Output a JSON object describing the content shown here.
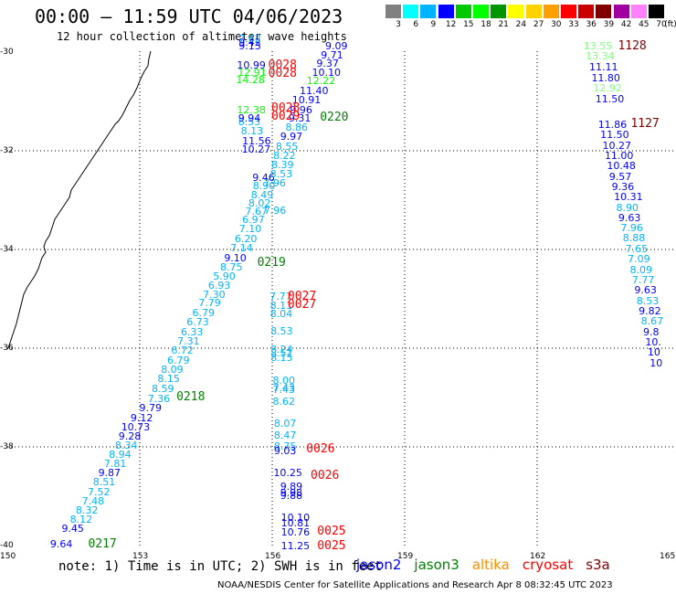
{
  "title": "00:00 – 11:59 UTC 04/06/2023",
  "subtitle": "12 hour collection of altimeter wave heights",
  "color_scale": {
    "labels": [
      "3",
      "6",
      "9",
      "12",
      "15",
      "18",
      "21",
      "24",
      "27",
      "30",
      "33",
      "36",
      "39",
      "42",
      "45",
      "70"
    ],
    "unit": "(ft)",
    "colors": [
      "#808080",
      "#00ffff",
      "#00b4ff",
      "#0000ff",
      "#00c800",
      "#00ff00",
      "#009600",
      "#ffff00",
      "#ffd200",
      "#ffa000",
      "#ff0000",
      "#c80000",
      "#800000",
      "#a000a0",
      "#ff80ff",
      "#000000"
    ]
  },
  "map": {
    "lon_labels": [
      "150",
      "153",
      "156",
      "159",
      "162",
      "165"
    ],
    "lat_labels": [
      "-30",
      "-32",
      "-34",
      "-36",
      "-38",
      "-40"
    ],
    "grid": true,
    "tracks": [
      {
        "mission": "jason3",
        "time": "0217",
        "color": "#007f00"
      },
      {
        "mission": "jason3",
        "time": "0218",
        "color": "#007f00"
      },
      {
        "mission": "jason3",
        "time": "0219",
        "color": "#007f00"
      },
      {
        "mission": "jason3",
        "time": "0220",
        "color": "#007f00"
      },
      {
        "mission": "cryosat",
        "time": "0025",
        "color": "#ff0000"
      },
      {
        "mission": "cryosat",
        "time": "0026",
        "color": "#ff0000"
      },
      {
        "mission": "cryosat",
        "time": "0027",
        "color": "#ff0000"
      },
      {
        "mission": "cryosat",
        "time": "0028",
        "color": "#ff0000"
      },
      {
        "mission": "s3a",
        "time": "1127",
        "color": "#800000"
      },
      {
        "mission": "s3a",
        "time": "1128",
        "color": "#800000"
      }
    ],
    "observations": [
      {
        "v": "9.64",
        "lon": 150.97,
        "lat": -39.97,
        "c": "#0000ff"
      },
      {
        "v": "9.45",
        "lon": 151.23,
        "lat": -39.65,
        "c": "#0000ff"
      },
      {
        "v": "8.12",
        "lon": 151.42,
        "lat": -39.47,
        "c": "#00b4ff"
      },
      {
        "v": "8.32",
        "lon": 151.55,
        "lat": -39.28,
        "c": "#00b4ff"
      },
      {
        "v": "7.48",
        "lon": 151.69,
        "lat": -39.09,
        "c": "#00b4ff"
      },
      {
        "v": "7.52",
        "lon": 151.82,
        "lat": -38.9,
        "c": "#00b4ff"
      },
      {
        "v": "8.51",
        "lon": 151.94,
        "lat": -38.71,
        "c": "#00b4ff"
      },
      {
        "v": "9.87",
        "lon": 152.06,
        "lat": -38.51,
        "c": "#0000ff"
      },
      {
        "v": "7.81",
        "lon": 152.19,
        "lat": -38.33,
        "c": "#00b4ff"
      },
      {
        "v": "8.94",
        "lon": 152.3,
        "lat": -38.15,
        "c": "#00b4ff"
      },
      {
        "v": "8.34",
        "lon": 152.44,
        "lat": -37.97,
        "c": "#00b4ff"
      },
      {
        "v": "9.28",
        "lon": 152.52,
        "lat": -37.78,
        "c": "#0000ff"
      },
      {
        "v": "10.73",
        "lon": 152.58,
        "lat": -37.59,
        "c": "#0000ff"
      },
      {
        "v": "9.12",
        "lon": 152.79,
        "lat": -37.4,
        "c": "#0000ff"
      },
      {
        "v": "9.79",
        "lon": 152.99,
        "lat": -37.21,
        "c": "#0000ff"
      },
      {
        "v": "7.36",
        "lon": 153.18,
        "lat": -37.02,
        "c": "#00b4ff"
      },
      {
        "v": "8.59",
        "lon": 153.27,
        "lat": -36.82,
        "c": "#00b4ff"
      },
      {
        "v": "8.15",
        "lon": 153.4,
        "lat": -36.62,
        "c": "#00b4ff"
      },
      {
        "v": "8.09",
        "lon": 153.48,
        "lat": -36.43,
        "c": "#00b4ff"
      },
      {
        "v": "6.79",
        "lon": 153.62,
        "lat": -36.24,
        "c": "#00b4ff"
      },
      {
        "v": "6.72",
        "lon": 153.71,
        "lat": -36.04,
        "c": "#00b4ff"
      },
      {
        "v": "7.31",
        "lon": 153.85,
        "lat": -35.85,
        "c": "#00b4ff"
      },
      {
        "v": "6.33",
        "lon": 153.93,
        "lat": -35.66,
        "c": "#00b4ff"
      },
      {
        "v": "6.73",
        "lon": 154.06,
        "lat": -35.46,
        "c": "#00b4ff"
      },
      {
        "v": "6.79",
        "lon": 154.19,
        "lat": -35.27,
        "c": "#00b4ff"
      },
      {
        "v": "7.79",
        "lon": 154.33,
        "lat": -35.08,
        "c": "#00b4ff"
      },
      {
        "v": "7.30",
        "lon": 154.43,
        "lat": -34.91,
        "c": "#00b4ff"
      },
      {
        "v": "6.93",
        "lon": 154.55,
        "lat": -34.72,
        "c": "#00b4ff"
      },
      {
        "v": "5.90",
        "lon": 154.66,
        "lat": -34.53,
        "c": "#00b4ff"
      },
      {
        "v": "8.75",
        "lon": 154.82,
        "lat": -34.35,
        "c": "#00b4ff"
      },
      {
        "v": "9.10",
        "lon": 154.91,
        "lat": -34.16,
        "c": "#0000ff"
      },
      {
        "v": "7.14",
        "lon": 155.05,
        "lat": -33.96,
        "c": "#00b4ff"
      },
      {
        "v": "6.20",
        "lon": 155.15,
        "lat": -33.77,
        "c": "#00b4ff"
      },
      {
        "v": "7.10",
        "lon": 155.25,
        "lat": -33.57,
        "c": "#00b4ff"
      },
      {
        "v": "6.97",
        "lon": 155.32,
        "lat": -33.39,
        "c": "#00b4ff"
      },
      {
        "v": "7.67",
        "lon": 155.39,
        "lat": -33.22,
        "c": "#00b4ff"
      },
      {
        "v": "8.02",
        "lon": 155.46,
        "lat": -33.05,
        "c": "#00b4ff"
      },
      {
        "v": "8.49",
        "lon": 155.52,
        "lat": -32.88,
        "c": "#00b4ff"
      },
      {
        "v": "8.90",
        "lon": 155.56,
        "lat": -32.71,
        "c": "#00b4ff"
      },
      {
        "v": "9.46",
        "lon": 155.55,
        "lat": -32.53,
        "c": "#0000ff"
      },
      {
        "v": "10.27",
        "lon": 155.31,
        "lat": -31.97,
        "c": "#0000ff"
      },
      {
        "v": "11.56",
        "lon": 155.32,
        "lat": -31.79,
        "c": "#0000ff"
      },
      {
        "v": "8.13",
        "lon": 155.29,
        "lat": -31.6,
        "c": "#00b4ff"
      },
      {
        "v": "8.53",
        "lon": 155.23,
        "lat": -31.4,
        "c": "#00b4ff"
      },
      {
        "v": "9.94",
        "lon": 155.23,
        "lat": -31.33,
        "c": "#0000ff"
      },
      {
        "v": "12.38",
        "lon": 155.2,
        "lat": -31.16,
        "c": "#00ff00"
      },
      {
        "v": "14.28",
        "lon": 155.18,
        "lat": -30.56,
        "c": "#00ff00"
      },
      {
        "v": "12.91",
        "lon": 155.22,
        "lat": -30.41,
        "c": "#00ff00"
      },
      {
        "v": "10.99",
        "lon": 155.2,
        "lat": -30.25,
        "c": "#0000ff"
      },
      {
        "v": "9.13",
        "lon": 155.24,
        "lat": -29.87,
        "c": "#0000ff"
      },
      {
        "v": "9.42",
        "lon": 155.24,
        "lat": -29.8,
        "c": "#0000ff"
      },
      {
        "v": "7.62",
        "lon": 155.24,
        "lat": -29.72,
        "c": "#00b4ff"
      },
      {
        "v": "9.09",
        "lon": 157.2,
        "lat": -29.87,
        "c": "#0000ff"
      },
      {
        "v": "9.71",
        "lon": 157.1,
        "lat": -30.05,
        "c": "#0000ff"
      },
      {
        "v": "9.37",
        "lon": 157.0,
        "lat": -30.22,
        "c": "#0000ff"
      },
      {
        "v": "10.10",
        "lon": 156.9,
        "lat": -30.4,
        "c": "#0000ff"
      },
      {
        "v": "12.22",
        "lon": 156.78,
        "lat": -30.57,
        "c": "#00ff00"
      },
      {
        "v": "11.40",
        "lon": 156.62,
        "lat": -30.78,
        "c": "#0000ff"
      },
      {
        "v": "10.91",
        "lon": 156.45,
        "lat": -30.96,
        "c": "#0000ff"
      },
      {
        "v": "9.96",
        "lon": 156.4,
        "lat": -31.16,
        "c": "#0000ff"
      },
      {
        "v": "9.31",
        "lon": 156.37,
        "lat": -31.34,
        "c": "#0000ff"
      },
      {
        "v": "8.86",
        "lon": 156.3,
        "lat": -31.52,
        "c": "#00b4ff"
      },
      {
        "v": "9.97",
        "lon": 156.18,
        "lat": -31.71,
        "c": "#0000ff"
      },
      {
        "v": "8.55",
        "lon": 156.08,
        "lat": -31.9,
        "c": "#00b4ff"
      },
      {
        "v": "8.22",
        "lon": 156.02,
        "lat": -32.09,
        "c": "#00b4ff"
      },
      {
        "v": "8.39",
        "lon": 155.98,
        "lat": -32.28,
        "c": "#00b4ff"
      },
      {
        "v": "8.53",
        "lon": 155.95,
        "lat": -32.46,
        "c": "#00b4ff"
      },
      {
        "v": "7.96",
        "lon": 155.8,
        "lat": -32.65,
        "c": "#00b4ff"
      },
      {
        "v": "7.96",
        "lon": 155.81,
        "lat": -33.2,
        "c": "#00b4ff"
      },
      {
        "v": "7.77",
        "lon": 155.94,
        "lat": -34.95,
        "c": "#00b4ff"
      },
      {
        "v": "8.11",
        "lon": 155.95,
        "lat": -35.13,
        "c": "#00b4ff"
      },
      {
        "v": "8.04",
        "lon": 155.95,
        "lat": -35.3,
        "c": "#00b4ff"
      },
      {
        "v": "8.53",
        "lon": 155.96,
        "lat": -35.65,
        "c": "#00b4ff"
      },
      {
        "v": "8.24",
        "lon": 155.96,
        "lat": -36.02,
        "c": "#00b4ff"
      },
      {
        "v": "8.51",
        "lon": 155.96,
        "lat": -36.1,
        "c": "#00b4ff"
      },
      {
        "v": "8.15",
        "lon": 155.96,
        "lat": -36.18,
        "c": "#00b4ff"
      },
      {
        "v": "8.00",
        "lon": 156.01,
        "lat": -36.64,
        "c": "#00b4ff"
      },
      {
        "v": "7.43",
        "lon": 156.01,
        "lat": -36.79,
        "c": "#00b4ff"
      },
      {
        "v": "7.43",
        "lon": 156.01,
        "lat": -36.84,
        "c": "#00b4ff"
      },
      {
        "v": "8.62",
        "lon": 156.01,
        "lat": -37.08,
        "c": "#00b4ff"
      },
      {
        "v": "8.07",
        "lon": 156.04,
        "lat": -37.52,
        "c": "#00b4ff"
      },
      {
        "v": "8.47",
        "lon": 156.04,
        "lat": -37.76,
        "c": "#00b4ff"
      },
      {
        "v": "8.75",
        "lon": 156.04,
        "lat": -37.99,
        "c": "#00b4ff"
      },
      {
        "v": "9.03",
        "lon": 156.04,
        "lat": -38.08,
        "c": "#0000ff"
      },
      {
        "v": "10.25",
        "lon": 156.03,
        "lat": -38.52,
        "c": "#0000ff"
      },
      {
        "v": "9.89",
        "lon": 156.18,
        "lat": -38.79,
        "c": "#0000ff"
      },
      {
        "v": "9.98",
        "lon": 156.18,
        "lat": -38.92,
        "c": "#0000ff"
      },
      {
        "v": "9.88",
        "lon": 156.18,
        "lat": -38.98,
        "c": "#0000ff"
      },
      {
        "v": "10.10",
        "lon": 156.2,
        "lat": -39.43,
        "c": "#0000ff"
      },
      {
        "v": "10.81",
        "lon": 156.2,
        "lat": -39.54,
        "c": "#0000ff"
      },
      {
        "v": "10.76",
        "lon": 156.2,
        "lat": -39.72,
        "c": "#0000ff"
      },
      {
        "v": "11.25",
        "lon": 156.2,
        "lat": -40.0,
        "c": "#0000ff"
      },
      {
        "v": "13.55",
        "lon": 163.05,
        "lat": -29.87,
        "c": "#80ff80"
      },
      {
        "v": "13.34",
        "lon": 163.1,
        "lat": -30.08,
        "c": "#80ff80"
      },
      {
        "v": "11.11",
        "lon": 163.18,
        "lat": -30.3,
        "c": "#0000ff"
      },
      {
        "v": "11.80",
        "lon": 163.23,
        "lat": -30.51,
        "c": "#0000ff"
      },
      {
        "v": "12.92",
        "lon": 163.27,
        "lat": -30.73,
        "c": "#80ff80"
      },
      {
        "v": "11.50",
        "lon": 163.32,
        "lat": -30.95,
        "c": "#0000ff"
      },
      {
        "v": "11.86",
        "lon": 163.38,
        "lat": -31.46,
        "c": "#0000ff"
      },
      {
        "v": "11.50",
        "lon": 163.43,
        "lat": -31.67,
        "c": "#0000ff"
      },
      {
        "v": "10.27",
        "lon": 163.48,
        "lat": -31.88,
        "c": "#0000ff"
      },
      {
        "v": "11.00",
        "lon": 163.53,
        "lat": -32.09,
        "c": "#0000ff"
      },
      {
        "v": "10.48",
        "lon": 163.58,
        "lat": -32.3,
        "c": "#0000ff"
      },
      {
        "v": "9.57",
        "lon": 163.63,
        "lat": -32.51,
        "c": "#0000ff"
      },
      {
        "v": "9.36",
        "lon": 163.69,
        "lat": -32.72,
        "c": "#0000ff"
      },
      {
        "v": "10.31",
        "lon": 163.74,
        "lat": -32.93,
        "c": "#0000ff"
      },
      {
        "v": "8.90",
        "lon": 163.79,
        "lat": -33.14,
        "c": "#00b4ff"
      },
      {
        "v": "9.63",
        "lon": 163.84,
        "lat": -33.35,
        "c": "#0000ff"
      },
      {
        "v": "7.96",
        "lon": 163.89,
        "lat": -33.56,
        "c": "#00b4ff"
      },
      {
        "v": "8.88",
        "lon": 163.94,
        "lat": -33.76,
        "c": "#00b4ff"
      },
      {
        "v": "7.65",
        "lon": 164.0,
        "lat": -33.98,
        "c": "#00b4ff"
      },
      {
        "v": "7.09",
        "lon": 164.05,
        "lat": -34.19,
        "c": "#00b4ff"
      },
      {
        "v": "8.09",
        "lon": 164.1,
        "lat": -34.4,
        "c": "#00b4ff"
      },
      {
        "v": "7.77",
        "lon": 164.15,
        "lat": -34.61,
        "c": "#00b4ff"
      },
      {
        "v": "9.63",
        "lon": 164.2,
        "lat": -34.82,
        "c": "#0000ff"
      },
      {
        "v": "8.53",
        "lon": 164.25,
        "lat": -35.03,
        "c": "#00b4ff"
      },
      {
        "v": "9.82",
        "lon": 164.3,
        "lat": -35.24,
        "c": "#0000ff"
      },
      {
        "v": "8.67",
        "lon": 164.35,
        "lat": -35.45,
        "c": "#00b4ff"
      },
      {
        "v": "9.8",
        "lon": 164.4,
        "lat": -35.66,
        "c": "#0000ff"
      },
      {
        "v": "10.",
        "lon": 164.45,
        "lat": -35.87,
        "c": "#0000ff"
      },
      {
        "v": "10",
        "lon": 164.5,
        "lat": -36.08,
        "c": "#0000ff"
      },
      {
        "v": "10",
        "lon": 164.55,
        "lat": -36.29,
        "c": "#0000ff"
      }
    ],
    "time_labels": [
      {
        "t": "0217",
        "lon": 151.83,
        "lat": -39.96,
        "c": "#007f00"
      },
      {
        "t": "0218",
        "lon": 153.83,
        "lat": -36.99,
        "c": "#007f00"
      },
      {
        "t": "0219",
        "lon": 155.66,
        "lat": -34.26,
        "c": "#007f00"
      },
      {
        "t": "0220",
        "lon": 157.08,
        "lat": -31.32,
        "c": "#007f00"
      },
      {
        "t": "0028",
        "lon": 155.91,
        "lat": -30.25,
        "c": "#ff0000"
      },
      {
        "t": "0028",
        "lon": 155.91,
        "lat": -30.42,
        "c": "#ff0000"
      },
      {
        "t": "0028",
        "lon": 155.98,
        "lat": -31.13,
        "c": "#ff0000"
      },
      {
        "t": "0029",
        "lon": 155.98,
        "lat": -31.3,
        "c": "#ff0000"
      },
      {
        "t": "0027",
        "lon": 156.35,
        "lat": -34.95,
        "c": "#ff0000"
      },
      {
        "t": "0027",
        "lon": 156.35,
        "lat": -35.12,
        "c": "#ff0000"
      },
      {
        "t": "0026",
        "lon": 156.77,
        "lat": -38.03,
        "c": "#ff0000"
      },
      {
        "t": "0026",
        "lon": 156.87,
        "lat": -38.57,
        "c": "#ff0000"
      },
      {
        "t": "0025",
        "lon": 157.02,
        "lat": -39.7,
        "c": "#ff0000"
      },
      {
        "t": "0025",
        "lon": 157.02,
        "lat": -40.0,
        "c": "#ff0000"
      },
      {
        "t": "1128",
        "lon": 163.83,
        "lat": -29.87,
        "c": "#800000"
      },
      {
        "t": "1127",
        "lon": 164.12,
        "lat": -31.45,
        "c": "#800000"
      }
    ]
  },
  "note": "note: 1) Time is in UTC; 2) SWH is in feet",
  "legend": [
    {
      "label": "jason2",
      "color": "#0000ff"
    },
    {
      "label": "jason3",
      "color": "#007f00"
    },
    {
      "label": "altika",
      "color": "#ff8c00"
    },
    {
      "label": "cryosat",
      "color": "#ff0000"
    },
    {
      "label": "s3a",
      "color": "#800000"
    }
  ],
  "credit": "NOAA/NESDIS Center for Satellite Applications and Research   Apr  8 08:32:45 UTC 2023"
}
